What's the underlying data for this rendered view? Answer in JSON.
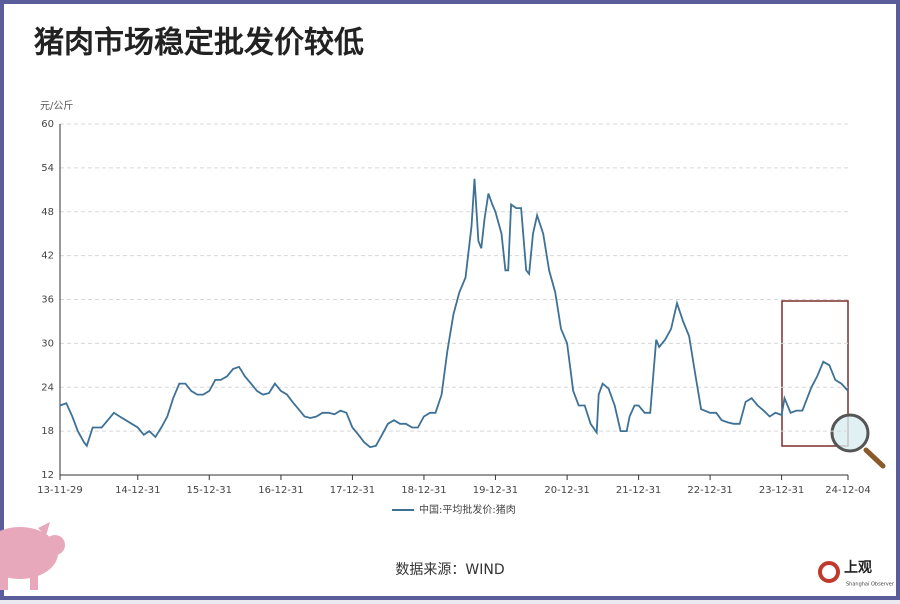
{
  "chart_data": {
    "type": "line",
    "title": "猪肉市场稳定批发价较低",
    "y_label": "元/公斤",
    "source": "数据来源：WIND",
    "logo": "上观",
    "logo_sub": "Shanghai Observer",
    "grid": true,
    "legend": "bottom",
    "ylim": [
      12,
      60
    ],
    "yticks": [
      12,
      18,
      24,
      30,
      36,
      42,
      48,
      54,
      60
    ],
    "xlim": [
      "13-11-29",
      "24-12-04"
    ],
    "xticks": [
      "13-11-29",
      "14-12-31",
      "15-12-31",
      "16-12-31",
      "17-12-31",
      "18-12-31",
      "19-12-31",
      "20-12-31",
      "21-12-31",
      "22-12-31",
      "23-12-31",
      "24-12-04"
    ],
    "x": [
      "13-11-29",
      "13-12-31",
      "14-01-31",
      "14-02-28",
      "14-03-31",
      "14-04-15",
      "14-05-15",
      "14-06-30",
      "14-07-31",
      "14-08-31",
      "14-09-30",
      "14-10-31",
      "14-11-30",
      "14-12-31",
      "15-01-31",
      "15-02-28",
      "15-03-31",
      "15-04-30",
      "15-05-31",
      "15-06-30",
      "15-07-31",
      "15-08-31",
      "15-09-30",
      "15-10-31",
      "15-11-30",
      "15-12-31",
      "16-01-31",
      "16-02-28",
      "16-03-31",
      "16-04-30",
      "16-05-31",
      "16-06-30",
      "16-07-31",
      "16-08-31",
      "16-09-30",
      "16-10-31",
      "16-11-30",
      "16-12-31",
      "17-01-31",
      "17-02-28",
      "17-03-31",
      "17-04-30",
      "17-05-31",
      "17-06-30",
      "17-07-31",
      "17-08-31",
      "17-09-30",
      "17-10-31",
      "17-11-30",
      "17-12-31",
      "18-01-31",
      "18-02-28",
      "18-03-31",
      "18-04-30",
      "18-05-31",
      "18-06-30",
      "18-07-31",
      "18-08-31",
      "18-09-30",
      "18-10-31",
      "18-11-30",
      "18-12-31",
      "19-01-31",
      "19-02-28",
      "19-03-31",
      "19-04-30",
      "19-05-31",
      "19-06-30",
      "19-07-31",
      "19-08-31",
      "19-09-15",
      "19-10-05",
      "19-10-20",
      "19-11-05",
      "19-11-25",
      "19-12-15",
      "19-12-31",
      "20-01-31",
      "20-02-20",
      "20-03-05",
      "20-03-20",
      "20-04-15",
      "20-05-10",
      "20-06-05",
      "20-06-20",
      "20-07-10",
      "20-07-31",
      "20-08-31",
      "20-09-30",
      "20-10-31",
      "20-11-30",
      "20-12-31",
      "21-01-31",
      "21-02-28",
      "21-03-31",
      "21-04-30",
      "21-05-31",
      "21-06-10",
      "21-06-30",
      "21-07-31",
      "21-08-31",
      "21-09-30",
      "21-10-31",
      "21-11-15",
      "21-12-10",
      "21-12-31",
      "22-01-31",
      "22-02-28",
      "22-03-31",
      "22-04-15",
      "22-05-15",
      "22-06-15",
      "22-07-15",
      "22-08-15",
      "22-09-15",
      "22-10-15",
      "22-11-15",
      "22-12-31",
      "23-01-31",
      "23-02-28",
      "23-03-31",
      "23-04-30",
      "23-05-31",
      "23-06-30",
      "23-07-31",
      "23-08-31",
      "23-09-30",
      "23-10-31",
      "23-11-30",
      "23-12-31",
      "24-01-15",
      "24-02-15",
      "24-03-15",
      "24-04-15",
      "24-05-31",
      "24-06-30",
      "24-07-31",
      "24-08-31",
      "24-09-30",
      "24-10-31",
      "24-12-04"
    ],
    "series": [
      {
        "name": "中国:平均批发价:猪肉",
        "color": "#3d7196",
        "values": [
          21.5,
          21.8,
          20,
          18,
          16.5,
          16,
          18.5,
          18.5,
          19.5,
          20.5,
          20,
          19.5,
          19,
          18.5,
          17.5,
          18,
          17.2,
          18.5,
          20,
          22.5,
          24.5,
          24.5,
          23.5,
          23,
          23,
          23.5,
          25,
          25,
          25.5,
          26.5,
          26.8,
          25.5,
          24.5,
          23.5,
          23,
          23.2,
          24.5,
          23.5,
          23,
          22,
          21,
          20,
          19.8,
          20,
          20.5,
          20.5,
          20.3,
          20.8,
          20.5,
          18.5,
          17.5,
          16.5,
          15.8,
          16,
          17.5,
          19,
          19.5,
          19,
          19,
          18.5,
          18.5,
          20,
          20.5,
          20.5,
          23,
          29,
          34,
          37,
          39,
          46,
          52.5,
          44,
          43,
          47,
          50.5,
          49,
          48,
          45,
          40,
          40,
          49,
          48.5,
          48.5,
          40,
          39.5,
          45,
          47.5,
          45,
          40,
          37,
          32,
          30,
          23.5,
          21.5,
          21.5,
          19,
          17.8,
          23,
          24.5,
          23.8,
          21.5,
          18,
          18,
          20,
          21.5,
          21.5,
          20.5,
          20.5,
          30.5,
          29.5,
          30.5,
          32,
          35.5,
          33,
          31,
          26,
          21,
          20.5,
          20.5,
          19.5,
          19.2,
          19,
          19,
          22,
          22.5,
          21.5,
          20.8,
          20,
          20.5,
          20.2,
          22.5,
          20.5,
          20.8,
          20.8,
          24,
          25.5,
          27.5,
          27,
          25,
          24.5,
          23.5
        ]
      }
    ]
  }
}
